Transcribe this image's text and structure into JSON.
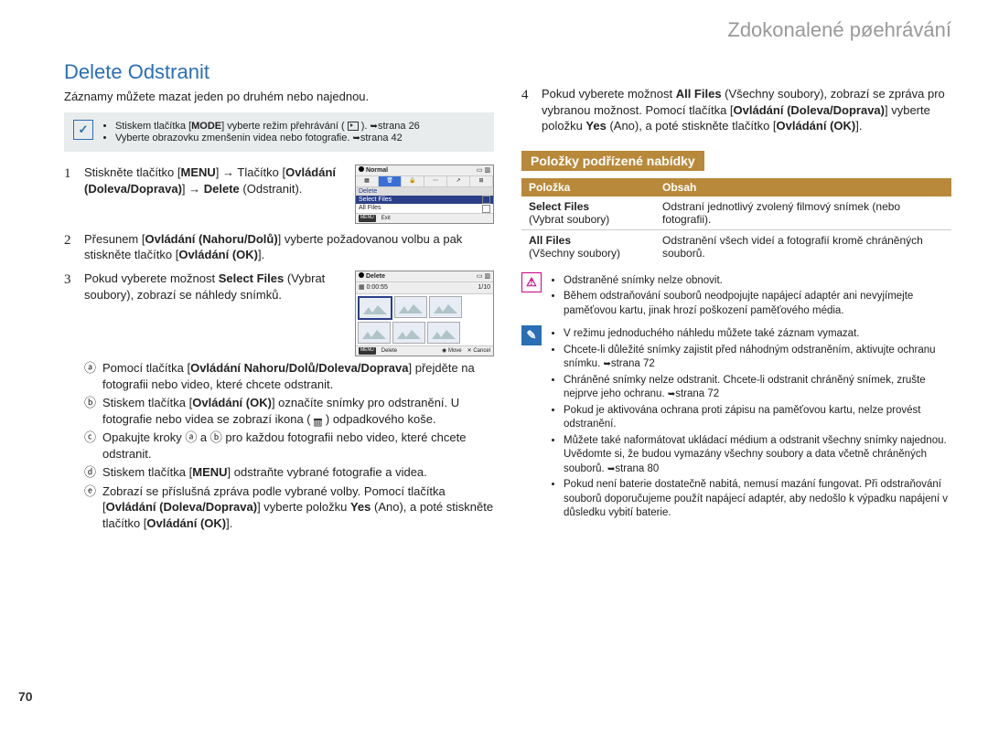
{
  "chapter": "Zdokonalené pøehrávání",
  "section_title": "Delete Odstranit",
  "intro": "Záznamy můžete mazat jeden po druhém nebo najednou.",
  "callout1": {
    "items": [
      {
        "pre": "Stiskem tlačítka [",
        "b": "MODE",
        "post": "] vyberte režim přehrávání ( ",
        "icon": "play",
        "after": " ).",
        "ref": "strana 26"
      },
      {
        "text": "Vyberte obrazovku zmenšenin videa nebo fotografie. ",
        "ref": "strana 42"
      }
    ]
  },
  "steps": [
    {
      "n": "1",
      "lines": [
        {
          "t": "Stiskněte tlačítko ["
        },
        {
          "b": "MENU"
        },
        {
          "t": "] → Tlačítko ["
        },
        {
          "b": "Ovládání (Doleva/Doprava)"
        },
        {
          "t": "] → "
        },
        {
          "b": "Delete"
        },
        {
          "t": " (Odstranit)."
        }
      ],
      "lcd": "menu"
    },
    {
      "n": "2",
      "lines": [
        {
          "t": "Přesunem ["
        },
        {
          "b": "Ovládání (Nahoru/Dolů)"
        },
        {
          "t": "] vyberte požadovanou volbu a pak stiskněte tlačítko ["
        },
        {
          "b": "Ovládání (OK)"
        },
        {
          "t": "]."
        }
      ]
    },
    {
      "n": "3",
      "lines": [
        {
          "t": "Pokud vyberete možnost "
        },
        {
          "b": "Select Files"
        },
        {
          "t": " (Vybrat soubory), zobrazí se náhledy snímků."
        }
      ],
      "lcd": "thumbs",
      "subs": [
        {
          "m": "ⓐ",
          "parts": [
            {
              "t": "Pomocí tlačítka ["
            },
            {
              "b": "Ovládání Nahoru/Dolů/Doleva/Doprava"
            },
            {
              "t": "] přejděte na fotografii nebo video, které chcete odstranit."
            }
          ]
        },
        {
          "m": "ⓑ",
          "parts": [
            {
              "t": "Stiskem tlačítka ["
            },
            {
              "b": "Ovládání (OK)"
            },
            {
              "t": "] označíte snímky pro odstranění. U fotografie nebo videa se zobrazí ikona ( "
            },
            {
              "trash": true
            },
            {
              "t": " ) odpadkového koše."
            }
          ]
        },
        {
          "m": "ⓒ",
          "parts": [
            {
              "t": "Opakujte kroky ⓐ a ⓑ pro každou fotografii nebo video, které chcete odstranit."
            }
          ]
        },
        {
          "m": "ⓓ",
          "parts": [
            {
              "t": "Stiskem tlačítka ["
            },
            {
              "b": "MENU"
            },
            {
              "t": "] odstraňte vybrané fotografie a videa."
            }
          ]
        },
        {
          "m": "ⓔ",
          "parts": [
            {
              "t": "Zobrazí se příslušná zpráva podle vybrané volby. Pomocí tlačítka ["
            },
            {
              "b": "Ovládání (Doleva/Doprava)"
            },
            {
              "t": "] vyberte položku "
            },
            {
              "b": "Yes"
            },
            {
              "t": " (Ano), a poté stiskněte tlačítko ["
            },
            {
              "b": "Ovládání (OK)"
            },
            {
              "t": "]."
            }
          ]
        }
      ]
    },
    {
      "n": "4",
      "lines": [
        {
          "t": "Pokud vyberete možnost "
        },
        {
          "b": "All Files"
        },
        {
          "t": " (Všechny soubory), zobrazí se zpráva pro vybranou možnost. Pomocí tlačítka ["
        },
        {
          "b": "Ovládání (Doleva/Doprava)"
        },
        {
          "t": "] vyberte položku "
        },
        {
          "b": "Yes"
        },
        {
          "t": " (Ano), a poté stiskněte tlačítko ["
        },
        {
          "b": "Ovládání (OK)"
        },
        {
          "t": "]."
        }
      ]
    }
  ],
  "subhead": "Položky podřízené nabídky",
  "table": {
    "headers": [
      "Položka",
      "Obsah"
    ],
    "rows": [
      {
        "c1b": "Select Files",
        "c1": "(Vybrat soubory)",
        "c2": "Odstraní jednotlivý zvolený filmový snímek (nebo fotografii)."
      },
      {
        "c1b": "All Files",
        "c1": "(Všechny soubory)",
        "c2": "Odstranění všech videí a fotografií kromě chráněných souborů."
      }
    ]
  },
  "warn_notes": [
    "Odstraněné snímky nelze obnovit.",
    "Během odstraňování souborů neodpojujte napájecí adaptér ani nevyjímejte paměťovou kartu, jinak hrozí poškození paměťového média."
  ],
  "info_notes": [
    {
      "t": "V režimu jednoduchého náhledu můžete také záznam vymazat."
    },
    {
      "t": "Chcete-li důležité snímky zajistit před náhodným odstraněním, aktivujte ochranu snímku. ",
      "ref": "strana 72"
    },
    {
      "t": "Chráněné snímky nelze odstranit. Chcete-li odstranit chráněný snímek, zrušte nejprve jeho ochranu. ",
      "ref": "strana 72"
    },
    {
      "t": "Pokud je aktivována ochrana proti zápisu na paměťovou kartu, nelze provést odstranění."
    },
    {
      "t": "Můžete také naformátovat ukládací médium a odstranit všechny snímky najednou. Uvědomte si, že budou vymazány všechny soubory a data včetně chráněných souborů. ",
      "ref": "strana 80"
    },
    {
      "t": "Pokud není baterie dostatečně nabitá, nemusí mazání fungovat. Při odstraňování souborů doporučujeme použít napájecí adaptér, aby nedošlo k výpadku napájení v důsledku vybití baterie."
    }
  ],
  "pagenum": "70",
  "lcd_menu": {
    "title": "Normal",
    "section": "Delete",
    "options": [
      "Select Files",
      "All Files"
    ],
    "selected": 0,
    "exit": "Exit"
  },
  "lcd_thumbs": {
    "title": "Delete",
    "time": "0:00:55",
    "counter": "1/10",
    "foot": [
      "Delete",
      "Move",
      "Cancel"
    ]
  },
  "colors": {
    "accent": "#2a6fb5",
    "sub_accent": "#b8893a",
    "callout_bg": "#e9eced",
    "lcd_sel": "#2a3f88"
  }
}
